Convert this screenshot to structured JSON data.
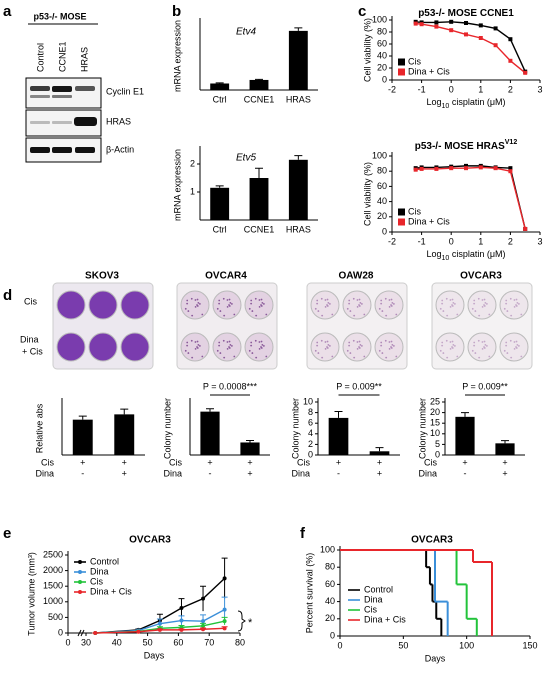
{
  "panel_labels": [
    "a",
    "b",
    "c",
    "d",
    "e",
    "f"
  ],
  "blot": {
    "title": "p53-/- MOSE",
    "columns": [
      "Control",
      "CCNE1",
      "HRAS"
    ],
    "rows": [
      "Cyclin E1",
      "HRAS",
      "β-Actin"
    ]
  },
  "plates": {
    "row_labels": [
      "Cis",
      "Dina",
      "+ Cis"
    ]
  },
  "chart_data": [
    {
      "type": "bar",
      "title": "Etv4",
      "ylabel": "mRNA expression",
      "categories": [
        "Ctrl",
        "CCNE1",
        "HRAS"
      ],
      "values": [
        1.1,
        1.7,
        10
      ],
      "errors": [
        0.1,
        0.1,
        0.5
      ],
      "color": "#000000",
      "ylim": [
        0,
        11.5
      ]
    },
    {
      "type": "bar",
      "title": "Etv5",
      "ylabel": "mRNA expression",
      "categories": [
        "Ctrl",
        "CCNE1",
        "HRAS"
      ],
      "values": [
        1.15,
        1.5,
        2.15
      ],
      "errors": [
        0.07,
        0.35,
        0.15
      ],
      "color": "#000000",
      "ylim": [
        0,
        2.5
      ],
      "yticks": [
        1,
        2
      ]
    },
    {
      "type": "line",
      "title": [
        "p53-/- MOSE CCNE1"
      ],
      "xlabel": [
        "Log",
        "10",
        " cisplatin (μM)"
      ],
      "ylabel": "Cell viability (%)",
      "x": [
        -1.2,
        -1,
        -0.5,
        0,
        0.5,
        1,
        1.5,
        2,
        2.5
      ],
      "series": [
        {
          "name": "Cis",
          "color": "#000000",
          "values": [
            97,
            96,
            96,
            97,
            95,
            91,
            86,
            68,
            14
          ]
        },
        {
          "name": "Dina + Cis",
          "color": "#e8262b",
          "values": [
            94,
            93,
            89,
            83,
            76,
            70,
            58,
            32,
            12
          ]
        }
      ],
      "xlim": [
        -2,
        3
      ],
      "xticks": [
        -2,
        -1,
        0,
        1,
        2,
        3
      ],
      "ylim": [
        0,
        100
      ],
      "yticks": [
        0,
        20,
        40,
        60,
        80,
        100
      ],
      "legend": "lower left"
    },
    {
      "type": "line",
      "title": [
        "p53-/- MOSE HRAS",
        "V12"
      ],
      "xlabel": [
        "Log",
        "10",
        " cisplatin (μM)"
      ],
      "ylabel": "Cell viability (%)",
      "x": [
        -1.2,
        -1,
        -0.5,
        0,
        0.5,
        1,
        1.5,
        2,
        2.5
      ],
      "series": [
        {
          "name": "Cis",
          "color": "#000000",
          "values": [
            84,
            85,
            85,
            86,
            87,
            87,
            85,
            84,
            4
          ]
        },
        {
          "name": "Dina + Cis",
          "color": "#e8262b",
          "values": [
            82,
            83,
            83,
            84,
            84,
            85,
            84,
            80,
            4
          ]
        }
      ],
      "xlim": [
        -2,
        3
      ],
      "xticks": [
        -2,
        -1,
        0,
        1,
        2,
        3
      ],
      "ylim": [
        0,
        100
      ],
      "yticks": [
        0,
        20,
        40,
        60,
        80,
        100
      ],
      "legend": "lower left"
    },
    {
      "type": "bar",
      "title": "SKOV3",
      "ylabel": "Relative abs",
      "x_rows": [
        {
          "name": "Cis",
          "labels": [
            "+",
            "+"
          ]
        },
        {
          "name": "Dina",
          "labels": [
            "-",
            "+"
          ]
        }
      ],
      "values": [
        1.0,
        1.15
      ],
      "errors": [
        0.1,
        0.15
      ],
      "color": "#000000",
      "ylim": [
        0,
        1.5
      ]
    },
    {
      "type": "bar",
      "title": "OVCAR4",
      "ylabel": "Colony number",
      "x_rows": [
        {
          "name": "Cis",
          "labels": [
            "+",
            "+"
          ]
        },
        {
          "name": "Dina",
          "labels": [
            "-",
            "+"
          ]
        }
      ],
      "values": [
        45,
        13
      ],
      "errors": [
        3,
        2
      ],
      "color": "#000000",
      "ylim": [
        0,
        55
      ],
      "annotation": "P = 0.0008***"
    },
    {
      "type": "bar",
      "title": "OAW28",
      "ylabel": "Colony number",
      "x_rows": [
        {
          "name": "Cis",
          "labels": [
            "+",
            "+"
          ]
        },
        {
          "name": "Dina",
          "labels": [
            "-",
            "+"
          ]
        }
      ],
      "values": [
        7,
        0.7
      ],
      "errors": [
        1.2,
        0.7
      ],
      "color": "#000000",
      "ylim": [
        0,
        10
      ],
      "yticks": [
        0,
        2,
        4,
        6,
        8,
        10
      ],
      "annotation": "P = 0.009**"
    },
    {
      "type": "bar",
      "title": "OVCAR3",
      "ylabel": "Colony number",
      "x_rows": [
        {
          "name": "Cis",
          "labels": [
            "+",
            "+"
          ]
        },
        {
          "name": "Dina",
          "labels": [
            "-",
            "+"
          ]
        }
      ],
      "values": [
        18,
        5.5
      ],
      "errors": [
        2,
        1.3
      ],
      "color": "#000000",
      "ylim": [
        0,
        25
      ],
      "yticks": [
        0,
        5,
        10,
        15,
        20,
        25
      ],
      "annotation": "P = 0.009**"
    },
    {
      "type": "line",
      "title": "OVCAR3",
      "xlabel": "Days",
      "ylabel": "Tumor volume (mm³)",
      "x": [
        33,
        47,
        54,
        61,
        68,
        75
      ],
      "series": [
        {
          "name": "Control",
          "color": "#000000",
          "values": [
            0,
            100,
            400,
            800,
            1100,
            1750
          ],
          "errors": [
            0,
            30,
            200,
            300,
            400,
            650
          ]
        },
        {
          "name": "Dina",
          "color": "#3b8fd9",
          "values": [
            0,
            80,
            300,
            400,
            380,
            750
          ],
          "errors": [
            0,
            20,
            150,
            150,
            200,
            400
          ]
        },
        {
          "name": "Cis",
          "color": "#22c33a",
          "values": [
            0,
            50,
            150,
            180,
            230,
            380
          ],
          "errors": [
            0,
            20,
            50,
            60,
            80,
            120
          ]
        },
        {
          "name": "Dina + Cis",
          "color": "#e8262b",
          "values": [
            0,
            40,
            100,
            100,
            120,
            150
          ],
          "errors": [
            0,
            10,
            30,
            30,
            40,
            50
          ]
        }
      ],
      "xlim": [
        0,
        80
      ],
      "xticks": [
        0,
        30,
        40,
        50,
        60,
        70,
        80
      ],
      "x_break": true,
      "ylim": [
        0,
        2500
      ],
      "yticks": [
        0,
        500,
        1000,
        1500,
        2000,
        2500
      ],
      "legend": "upper left",
      "annotation": "*"
    },
    {
      "type": "step",
      "title": "OVCAR3",
      "xlabel": "Days",
      "ylabel": "Percent survival (%)",
      "series": [
        {
          "name": "Control",
          "color": "#000000",
          "x": [
            0,
            68,
            71,
            73,
            76,
            80
          ],
          "values": [
            100,
            80,
            60,
            40,
            20,
            0
          ]
        },
        {
          "name": "Dina",
          "color": "#3b8fd9",
          "x": [
            0,
            75,
            85
          ],
          "values": [
            100,
            40,
            0
          ]
        },
        {
          "name": "Cis",
          "color": "#22c33a",
          "x": [
            0,
            92,
            100,
            108
          ],
          "values": [
            100,
            60,
            20,
            0
          ]
        },
        {
          "name": "Dina + Cis",
          "color": "#e8262b",
          "x": [
            0,
            105,
            120
          ],
          "values": [
            100,
            86,
            0
          ]
        }
      ],
      "xlim": [
        0,
        150
      ],
      "xticks": [
        0,
        50,
        100,
        150
      ],
      "ylim": [
        0,
        100
      ],
      "yticks": [
        0,
        20,
        40,
        60,
        80,
        100
      ],
      "legend": "lower left"
    }
  ]
}
